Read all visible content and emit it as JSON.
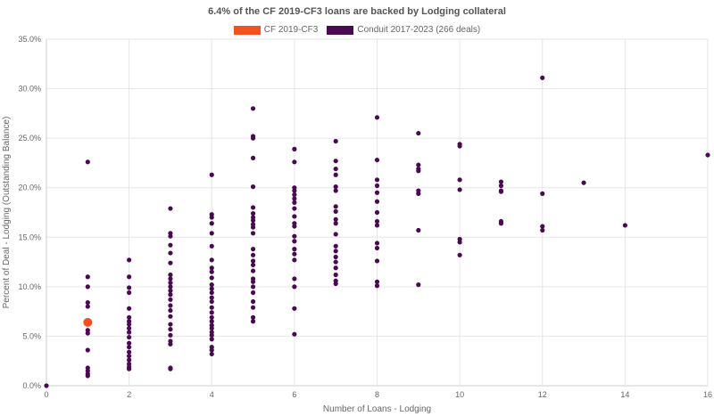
{
  "chart_data": {
    "type": "scatter",
    "title": "6.4% of the CF 2019-CF3 loans are backed by Lodging collateral",
    "xlabel": "Number of Loans - Lodging",
    "ylabel": "Percent of Deal - Lodging (Outstanding Balance)",
    "xlim": [
      0,
      16
    ],
    "ylim": [
      0,
      35
    ],
    "x_ticks": [
      "0",
      "2",
      "4",
      "6",
      "8",
      "10",
      "12",
      "14",
      "16"
    ],
    "y_ticks": [
      "0.0%",
      "5.0%",
      "10.0%",
      "15.0%",
      "20.0%",
      "25.0%",
      "30.0%",
      "35.0%"
    ],
    "grid": true,
    "legend_position": "top",
    "series": [
      {
        "name": "CF 2019-CF3",
        "color": "#f4511e",
        "points": [
          [
            1,
            6.4
          ]
        ]
      },
      {
        "name": "Conduit 2017-2023 (266 deals)",
        "color": "#4a0a52",
        "points": [
          [
            0,
            0.0
          ],
          [
            1,
            22.6
          ],
          [
            1,
            11.0
          ],
          [
            1,
            10.0
          ],
          [
            1,
            8.4
          ],
          [
            1,
            8.0
          ],
          [
            1,
            5.6
          ],
          [
            1,
            5.3
          ],
          [
            1,
            3.6
          ],
          [
            1,
            1.8
          ],
          [
            1,
            1.5
          ],
          [
            1,
            1.2
          ],
          [
            1,
            1.0
          ],
          [
            2,
            12.7
          ],
          [
            2,
            11.0
          ],
          [
            2,
            9.9
          ],
          [
            2,
            9.4
          ],
          [
            2,
            7.8
          ],
          [
            2,
            6.9
          ],
          [
            2,
            6.5
          ],
          [
            2,
            6.2
          ],
          [
            2,
            5.8
          ],
          [
            2,
            5.4
          ],
          [
            2,
            4.9
          ],
          [
            2,
            4.3
          ],
          [
            2,
            3.9
          ],
          [
            2,
            3.4
          ],
          [
            2,
            3.0
          ],
          [
            2,
            2.6
          ],
          [
            2,
            2.2
          ],
          [
            2,
            1.9
          ],
          [
            2,
            1.7
          ],
          [
            3,
            17.9
          ],
          [
            3,
            15.4
          ],
          [
            3,
            15.1
          ],
          [
            3,
            14.2
          ],
          [
            3,
            13.4
          ],
          [
            3,
            12.4
          ],
          [
            3,
            11.2
          ],
          [
            3,
            10.8
          ],
          [
            3,
            10.4
          ],
          [
            3,
            10.0
          ],
          [
            3,
            9.6
          ],
          [
            3,
            9.2
          ],
          [
            3,
            8.7
          ],
          [
            3,
            8.1
          ],
          [
            3,
            7.6
          ],
          [
            3,
            7.0
          ],
          [
            3,
            6.2
          ],
          [
            3,
            5.7
          ],
          [
            3,
            5.1
          ],
          [
            3,
            4.5
          ],
          [
            3,
            4.2
          ],
          [
            3,
            1.8
          ],
          [
            3,
            1.7
          ],
          [
            4,
            21.3
          ],
          [
            4,
            17.3
          ],
          [
            4,
            17.0
          ],
          [
            4,
            16.4
          ],
          [
            4,
            15.4
          ],
          [
            4,
            14.1
          ],
          [
            4,
            12.7
          ],
          [
            4,
            11.9
          ],
          [
            4,
            11.5
          ],
          [
            4,
            10.9
          ],
          [
            4,
            10.2
          ],
          [
            4,
            9.8
          ],
          [
            4,
            9.4
          ],
          [
            4,
            8.9
          ],
          [
            4,
            8.5
          ],
          [
            4,
            7.9
          ],
          [
            4,
            7.4
          ],
          [
            4,
            6.9
          ],
          [
            4,
            6.5
          ],
          [
            4,
            6.1
          ],
          [
            4,
            5.8
          ],
          [
            4,
            5.4
          ],
          [
            4,
            5.1
          ],
          [
            4,
            4.7
          ],
          [
            4,
            3.9
          ],
          [
            4,
            3.6
          ],
          [
            4,
            3.2
          ],
          [
            5,
            28.0
          ],
          [
            5,
            25.2
          ],
          [
            5,
            25.0
          ],
          [
            5,
            23.0
          ],
          [
            5,
            20.1
          ],
          [
            5,
            18.0
          ],
          [
            5,
            17.4
          ],
          [
            5,
            17.0
          ],
          [
            5,
            16.7
          ],
          [
            5,
            16.3
          ],
          [
            5,
            16.0
          ],
          [
            5,
            15.4
          ],
          [
            5,
            13.8
          ],
          [
            5,
            13.2
          ],
          [
            5,
            12.6
          ],
          [
            5,
            12.2
          ],
          [
            5,
            11.6
          ],
          [
            5,
            10.8
          ],
          [
            5,
            10.5
          ],
          [
            5,
            10.0
          ],
          [
            5,
            9.4
          ],
          [
            5,
            8.5
          ],
          [
            5,
            7.9
          ],
          [
            5,
            6.9
          ],
          [
            5,
            6.5
          ],
          [
            6,
            23.9
          ],
          [
            6,
            22.6
          ],
          [
            6,
            20.0
          ],
          [
            6,
            19.7
          ],
          [
            6,
            19.3
          ],
          [
            6,
            18.9
          ],
          [
            6,
            18.5
          ],
          [
            6,
            17.9
          ],
          [
            6,
            17.1
          ],
          [
            6,
            16.4
          ],
          [
            6,
            16.1
          ],
          [
            6,
            15.1
          ],
          [
            6,
            14.6
          ],
          [
            6,
            13.8
          ],
          [
            6,
            13.3
          ],
          [
            6,
            12.7
          ],
          [
            6,
            10.8
          ],
          [
            6,
            10.0
          ],
          [
            6,
            7.8
          ],
          [
            6,
            5.2
          ],
          [
            7,
            24.7
          ],
          [
            7,
            22.7
          ],
          [
            7,
            21.9
          ],
          [
            7,
            21.3
          ],
          [
            7,
            20.1
          ],
          [
            7,
            19.7
          ],
          [
            7,
            18.1
          ],
          [
            7,
            17.6
          ],
          [
            7,
            16.8
          ],
          [
            7,
            16.4
          ],
          [
            7,
            15.3
          ],
          [
            7,
            14.1
          ],
          [
            7,
            13.6
          ],
          [
            7,
            13.0
          ],
          [
            7,
            12.5
          ],
          [
            7,
            11.9
          ],
          [
            7,
            11.2
          ],
          [
            7,
            10.6
          ],
          [
            7,
            10.3
          ],
          [
            8,
            27.1
          ],
          [
            8,
            22.8
          ],
          [
            8,
            20.8
          ],
          [
            8,
            20.2
          ],
          [
            8,
            19.5
          ],
          [
            8,
            18.6
          ],
          [
            8,
            17.5
          ],
          [
            8,
            16.6
          ],
          [
            8,
            16.2
          ],
          [
            8,
            14.4
          ],
          [
            8,
            13.9
          ],
          [
            8,
            12.6
          ],
          [
            8,
            10.5
          ],
          [
            8,
            10.1
          ],
          [
            9,
            25.5
          ],
          [
            9,
            22.3
          ],
          [
            9,
            21.9
          ],
          [
            9,
            21.7
          ],
          [
            9,
            19.7
          ],
          [
            9,
            19.4
          ],
          [
            9,
            15.7
          ],
          [
            9,
            10.2
          ],
          [
            10,
            24.4
          ],
          [
            10,
            24.2
          ],
          [
            10,
            20.8
          ],
          [
            10,
            19.8
          ],
          [
            10,
            14.8
          ],
          [
            10,
            14.5
          ],
          [
            10,
            13.2
          ],
          [
            11,
            20.6
          ],
          [
            11,
            20.2
          ],
          [
            11,
            19.7
          ],
          [
            11,
            19.6
          ],
          [
            11,
            16.6
          ],
          [
            11,
            16.4
          ],
          [
            12,
            31.1
          ],
          [
            12,
            19.4
          ],
          [
            12,
            16.1
          ],
          [
            12,
            15.7
          ],
          [
            13,
            20.5
          ],
          [
            14,
            16.2
          ],
          [
            16,
            23.3
          ]
        ]
      }
    ]
  }
}
